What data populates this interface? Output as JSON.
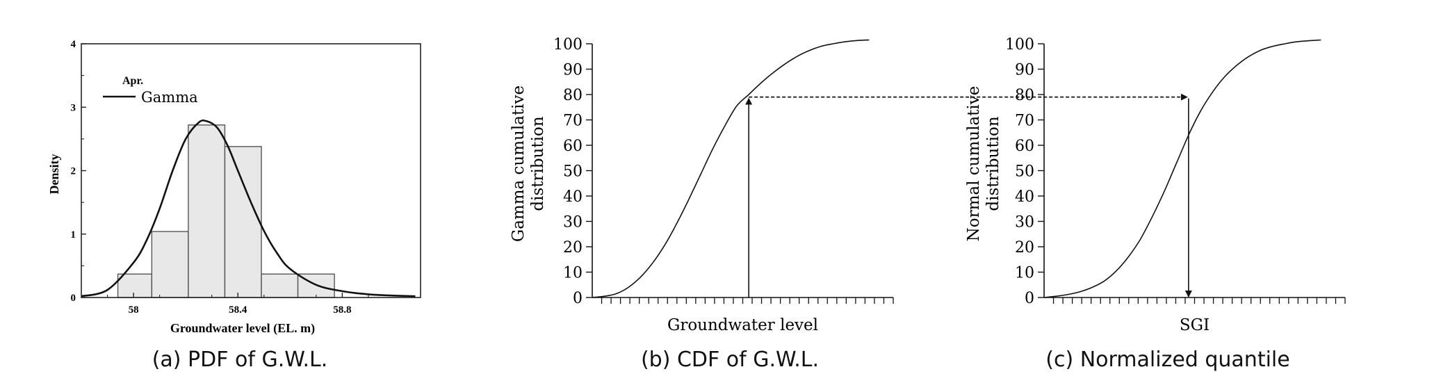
{
  "captions": {
    "a": "(a) PDF of G.W.L.",
    "b": "(b) CDF of G.W.L.",
    "c": "(c) Normalized quantile"
  },
  "chart_data": [
    {
      "id": "a",
      "type": "bar",
      "title": "",
      "xlabel": "Groundwater level (EL. m)",
      "ylabel": "Density",
      "xlim": [
        57.8,
        59.1
      ],
      "ylim": [
        0,
        4
      ],
      "xticks": [
        58,
        58.4,
        58.8
      ],
      "xtick_labels": [
        "58",
        "58.4",
        "58.8"
      ],
      "yticks": [
        0,
        1,
        2,
        3,
        4
      ],
      "ytick_labels": [
        "0",
        "1",
        "2",
        "3",
        "4"
      ],
      "legend": {
        "placement": "top-left",
        "heading": "Apr.",
        "entries": [
          "Gamma"
        ]
      },
      "bins": [
        {
          "x0": 57.94,
          "x1": 58.07,
          "value": 0.37
        },
        {
          "x0": 58.07,
          "x1": 58.21,
          "value": 1.04
        },
        {
          "x0": 58.21,
          "x1": 58.35,
          "value": 2.72
        },
        {
          "x0": 58.35,
          "x1": 58.49,
          "value": 2.38
        },
        {
          "x0": 58.49,
          "x1": 58.63,
          "value": 0.37
        },
        {
          "x0": 58.63,
          "x1": 58.77,
          "value": 0.37
        }
      ],
      "curve": {
        "x": [
          57.8,
          57.9,
          58.0,
          58.05,
          58.1,
          58.15,
          58.2,
          58.25,
          58.28,
          58.32,
          58.36,
          58.4,
          58.45,
          58.5,
          58.55,
          58.6,
          58.7,
          58.8,
          58.9,
          59.0,
          59.08
        ],
        "y": [
          0.02,
          0.12,
          0.55,
          0.9,
          1.4,
          2.0,
          2.5,
          2.76,
          2.78,
          2.68,
          2.4,
          2.0,
          1.5,
          1.05,
          0.7,
          0.45,
          0.2,
          0.1,
          0.05,
          0.03,
          0.02
        ]
      },
      "colors": {
        "bar_fill": "#e8e8e8",
        "bar_stroke": "#555555",
        "curve": "#111111"
      }
    },
    {
      "id": "b",
      "type": "line",
      "title": "",
      "xlabel": "Groundwater level",
      "ylabel": "Gamma cumulative distribution",
      "ylim": [
        0,
        100
      ],
      "yticks": [
        0,
        10,
        20,
        30,
        40,
        50,
        60,
        70,
        80,
        90,
        100
      ],
      "ytick_labels": [
        "0",
        "10",
        "20",
        "30",
        "40",
        "50",
        "60",
        "70",
        "80",
        "90",
        "100"
      ],
      "grid": false,
      "curve": {
        "x": [
          0.0,
          0.04,
          0.08,
          0.12,
          0.16,
          0.2,
          0.24,
          0.28,
          0.32,
          0.36,
          0.4,
          0.44,
          0.48,
          0.52,
          0.56,
          0.6,
          0.64,
          0.68,
          0.72,
          0.76,
          0.8,
          0.84,
          0.88,
          0.92
        ],
        "y": [
          0,
          0.5,
          1.5,
          4,
          8,
          13.5,
          20.5,
          29,
          38.5,
          48.5,
          58.5,
          67.5,
          75.5,
          80,
          84.5,
          88.5,
          92,
          95,
          97.3,
          99,
          100,
          100.8,
          101.3,
          101.5
        ]
      },
      "marker": {
        "x": 0.52,
        "y": 79
      }
    },
    {
      "id": "c",
      "type": "line",
      "title": "",
      "xlabel": "SGI",
      "ylabel": "Normal cumulative distribution",
      "ylim": [
        0,
        100
      ],
      "yticks": [
        0,
        10,
        20,
        30,
        40,
        50,
        60,
        70,
        80,
        90,
        100
      ],
      "ytick_labels": [
        "0",
        "10",
        "20",
        "30",
        "40",
        "50",
        "60",
        "70",
        "80",
        "90",
        "100"
      ],
      "grid": false,
      "curve": {
        "x": [
          0.0,
          0.04,
          0.08,
          0.12,
          0.16,
          0.2,
          0.24,
          0.28,
          0.32,
          0.36,
          0.4,
          0.44,
          0.48,
          0.52,
          0.56,
          0.6,
          0.64,
          0.68,
          0.72,
          0.76,
          0.8,
          0.84,
          0.88,
          0.92
        ],
        "y": [
          0,
          0.5,
          1.2,
          2.3,
          4,
          6.5,
          10.5,
          16,
          23,
          32,
          42,
          53,
          64,
          73.5,
          81,
          87,
          91.5,
          95,
          97.5,
          99,
          100,
          100.8,
          101.2,
          101.5
        ]
      },
      "marker": {
        "x": 0.48,
        "y": 79
      }
    }
  ]
}
